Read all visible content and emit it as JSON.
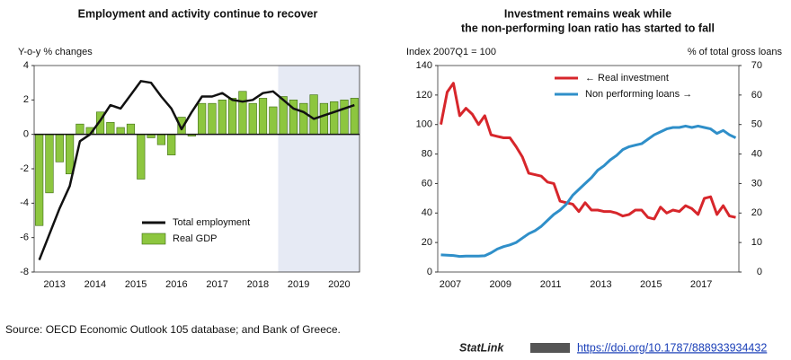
{
  "chart_data": [
    {
      "type": "bar",
      "title": "Employment and activity continue to recover",
      "y_axis_label": "Y-o-y % changes",
      "categories": [
        "2013",
        null,
        null,
        null,
        "2014",
        null,
        null,
        null,
        "2015",
        null,
        null,
        null,
        "2016",
        null,
        null,
        null,
        "2017",
        null,
        null,
        null,
        "2018",
        null,
        null,
        null,
        "2019",
        null,
        null,
        null,
        "2020",
        null,
        null,
        null
      ],
      "series": [
        {
          "name": "Total employment",
          "type": "line",
          "color": "#111111",
          "values": [
            -7.3,
            -5.8,
            -4.3,
            -3.0,
            -0.4,
            0.0,
            0.8,
            1.7,
            1.5,
            2.3,
            3.1,
            3.0,
            2.2,
            1.5,
            0.3,
            1.3,
            2.2,
            2.2,
            2.4,
            2.0,
            1.9,
            2.0,
            2.4,
            2.5,
            2.0,
            1.5,
            1.3,
            0.9,
            1.1,
            1.3,
            1.5,
            1.7
          ]
        },
        {
          "name": "Real GDP",
          "type": "bar",
          "color": "#8dc63f",
          "values": [
            -5.3,
            -3.4,
            -1.6,
            -2.3,
            0.6,
            0.4,
            1.3,
            0.7,
            0.4,
            0.6,
            -2.6,
            -0.2,
            -0.6,
            -1.2,
            1.0,
            -0.1,
            1.8,
            1.8,
            2.0,
            2.1,
            2.5,
            1.8,
            2.1,
            1.6,
            2.2,
            2.0,
            1.8,
            2.3,
            1.8,
            1.9,
            2.0,
            2.1
          ]
        }
      ],
      "ylim": [
        -8,
        4
      ],
      "yticks": [
        -8,
        -6,
        -4,
        -2,
        0,
        2,
        4
      ],
      "shaded_from_index": 24,
      "shade_color": "#e6eaf4",
      "grid": false,
      "legend": "lower center"
    },
    {
      "type": "line",
      "title": [
        "Investment remains weak while",
        "the non-performing loan ratio has started to fall"
      ],
      "y_axis_label": "Index 2007Q1 = 100",
      "y2_axis_label": "% of total gross loans",
      "categories": [
        "2007",
        null,
        null,
        null,
        null,
        null,
        null,
        null,
        "2009",
        null,
        null,
        null,
        null,
        null,
        null,
        null,
        "2011",
        null,
        null,
        null,
        null,
        null,
        null,
        null,
        "2013",
        null,
        null,
        null,
        null,
        null,
        null,
        null,
        "2015",
        null,
        null,
        null,
        null,
        null,
        null,
        null,
        "2017",
        null,
        null,
        null,
        null,
        null,
        null,
        null
      ],
      "series": [
        {
          "name": "← Real investment",
          "color": "#d7262b",
          "values": [
            100,
            122,
            128,
            106,
            111,
            107,
            100,
            106,
            93,
            92,
            91,
            91,
            85,
            78,
            67,
            66,
            65,
            61,
            60,
            48,
            47,
            46,
            41,
            47,
            42,
            42,
            41,
            41,
            40,
            38,
            39,
            42,
            42,
            37,
            36,
            44,
            40,
            42,
            41,
            45,
            43,
            39,
            50,
            51,
            39,
            45,
            38,
            37
          ]
        },
        {
          "name": "Non performing loans →",
          "color": "#2f8fc9",
          "axis": "y2",
          "values": [
            5.8,
            5.7,
            5.6,
            5.3,
            5.4,
            5.4,
            5.4,
            5.5,
            6.5,
            7.8,
            8.6,
            9.2,
            10,
            11.5,
            13,
            14,
            15.5,
            17.5,
            19.5,
            21,
            23,
            26,
            28,
            30,
            32,
            34.5,
            36,
            38,
            39.5,
            41.5,
            42.5,
            43,
            43.5,
            45,
            46.5,
            47.5,
            48.5,
            49,
            49,
            49.5,
            49,
            49.5,
            49,
            48.5,
            47,
            48,
            46.5,
            45.5
          ]
        }
      ],
      "ylim": [
        0,
        140
      ],
      "yticks": [
        0,
        20,
        40,
        60,
        80,
        100,
        120,
        140
      ],
      "y2lim": [
        0,
        70
      ],
      "y2ticks": [
        0,
        10,
        20,
        30,
        40,
        50,
        60,
        70
      ],
      "grid": false,
      "legend": "upper center"
    }
  ],
  "source": "Source: OECD Economic Outlook 105 database; and Bank of Greece.",
  "statlink": {
    "label": "StatLink",
    "url": "https://doi.org/10.1787/888933934432"
  }
}
